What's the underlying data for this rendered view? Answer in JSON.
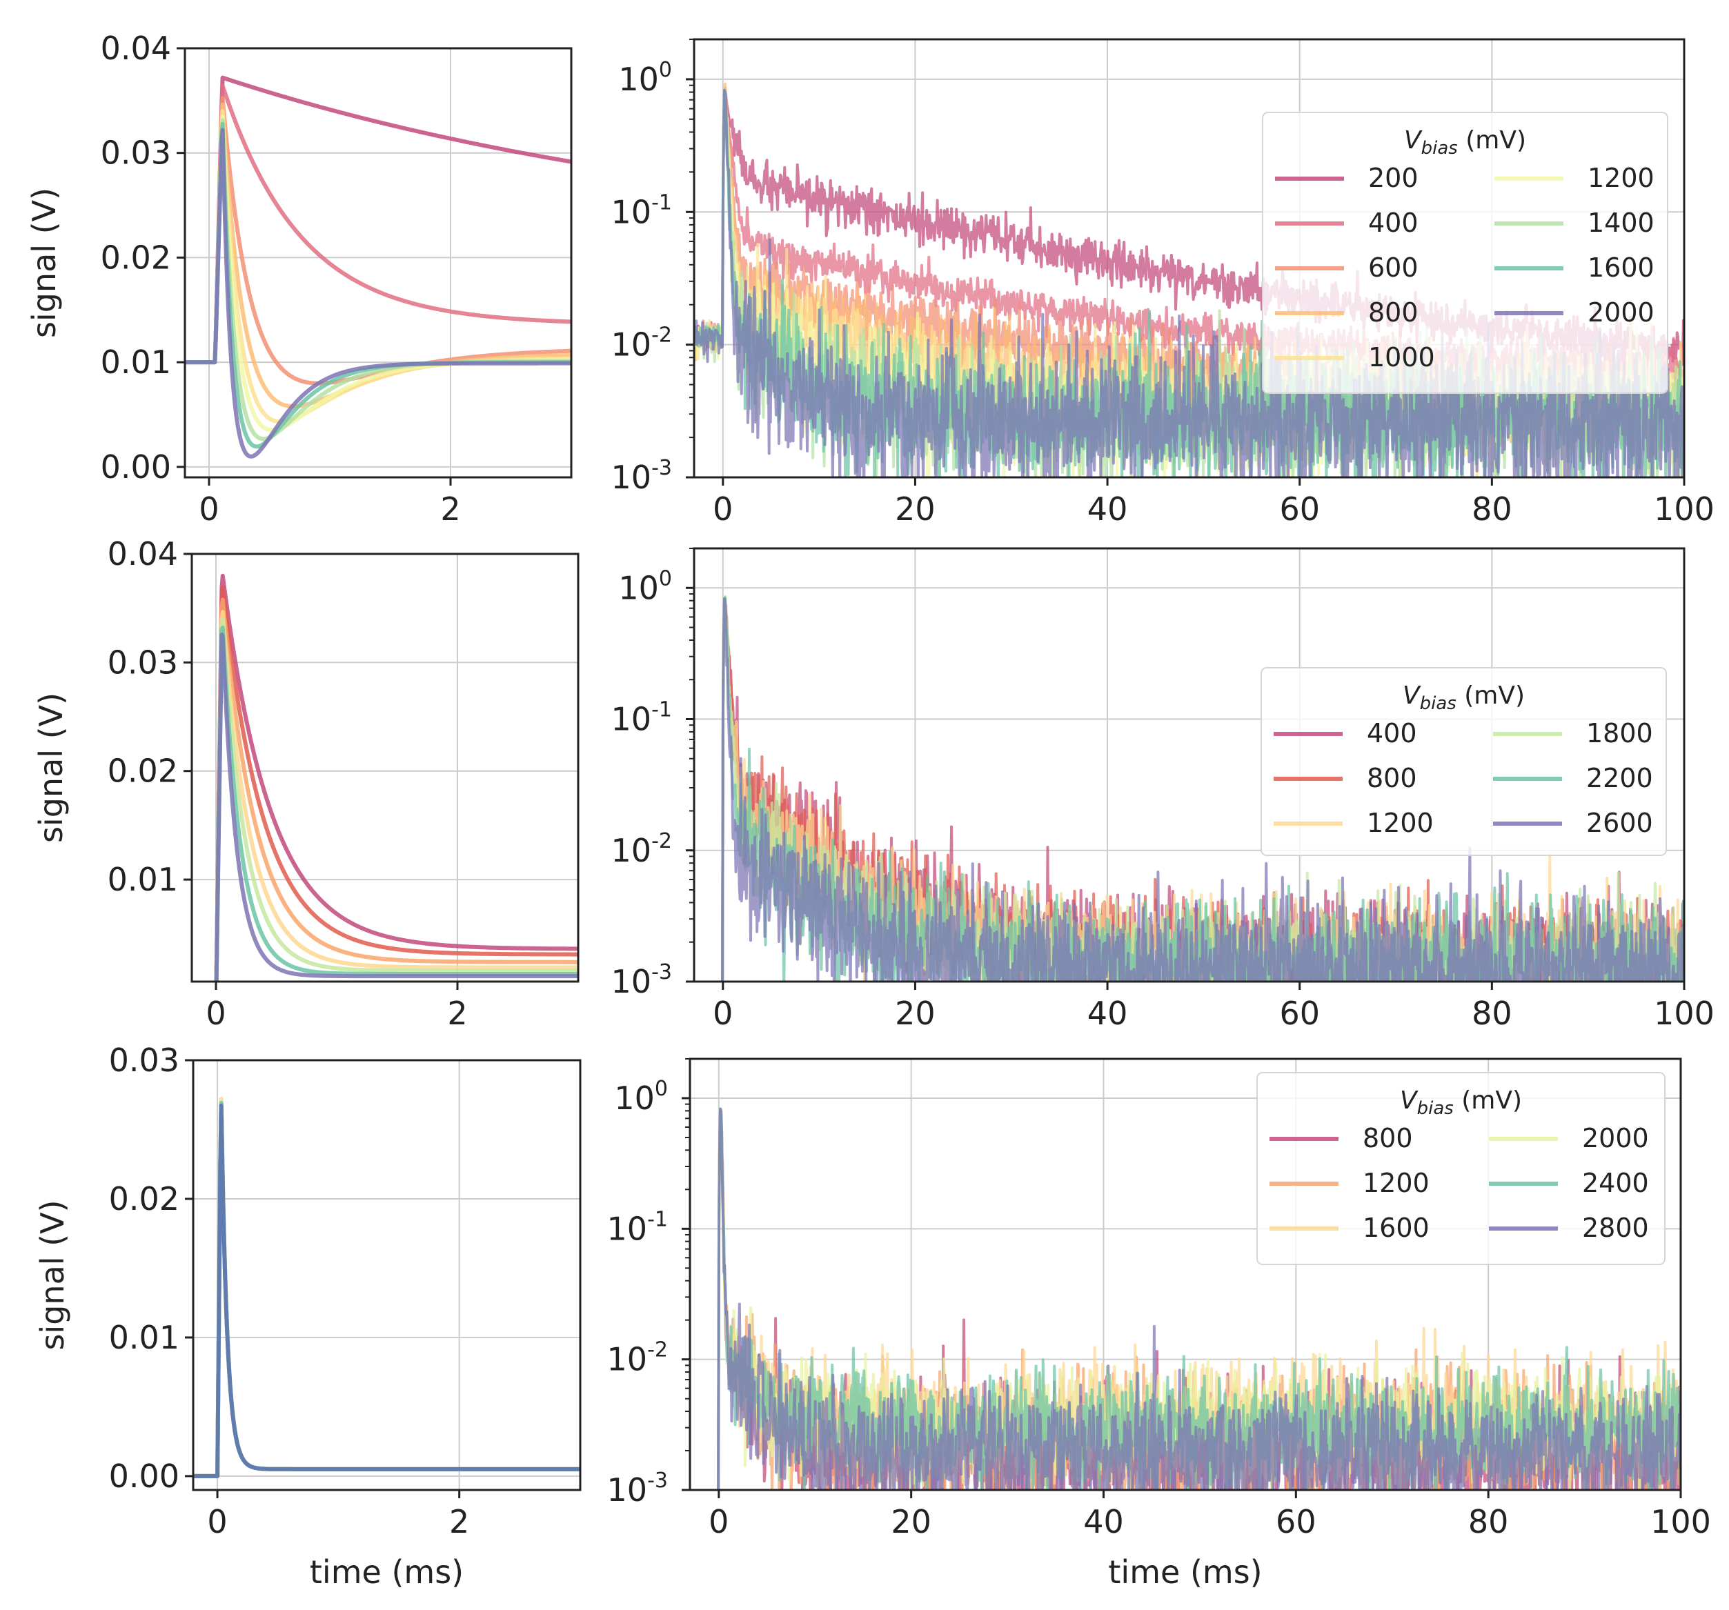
{
  "chart_data": [
    {
      "id": "row1-left",
      "type": "line",
      "scale": "linear",
      "title": "",
      "xlabel": "",
      "ylabel": "signal (V)",
      "xlim": [
        -0.2,
        3.0
      ],
      "ylim": [
        -0.001,
        0.04
      ],
      "xticks": [
        {
          "v": 0,
          "label": "0"
        },
        {
          "v": 2,
          "label": "2"
        }
      ],
      "yticks": [
        {
          "v": 0.0,
          "label": "0.00"
        },
        {
          "v": 0.01,
          "label": "0.01"
        },
        {
          "v": 0.02,
          "label": "0.02"
        },
        {
          "v": 0.03,
          "label": "0.03"
        },
        {
          "v": 0.04,
          "label": "0.04"
        }
      ],
      "grid": true,
      "series": [
        {
          "name": "200",
          "color": "#c2497a",
          "model": {
            "base": 0.01,
            "peak": 0.0372,
            "t0": 0.05,
            "rise": 0.06,
            "tau": 4.4,
            "final": 0.0205
          }
        },
        {
          "name": "400",
          "color": "#e06e83",
          "model": {
            "base": 0.01,
            "peak": 0.0365,
            "t0": 0.05,
            "rise": 0.06,
            "tau": 0.65,
            "final": 0.0136
          }
        },
        {
          "name": "600",
          "color": "#f38f74",
          "model": {
            "base": 0.01,
            "peak": 0.0355,
            "t0": 0.05,
            "rise": 0.06,
            "tau": 0.22,
            "final": 0.0113,
            "under": 0.0045,
            "utau": 0.5
          }
        },
        {
          "name": "800",
          "color": "#fbbd74",
          "model": {
            "base": 0.01,
            "peak": 0.035,
            "t0": 0.05,
            "rise": 0.06,
            "tau": 0.16,
            "final": 0.0108,
            "under": 0.006,
            "utau": 0.42
          }
        },
        {
          "name": "1000",
          "color": "#fde291",
          "model": {
            "base": 0.01,
            "peak": 0.0345,
            "t0": 0.05,
            "rise": 0.06,
            "tau": 0.13,
            "final": 0.0104,
            "under": 0.007,
            "utau": 0.36
          }
        },
        {
          "name": "1200",
          "color": "#f1f7a4",
          "model": {
            "base": 0.01,
            "peak": 0.034,
            "t0": 0.05,
            "rise": 0.06,
            "tau": 0.11,
            "final": 0.0102,
            "under": 0.0075,
            "utau": 0.32
          }
        },
        {
          "name": "1400",
          "color": "#b3e0a5",
          "model": {
            "base": 0.01,
            "peak": 0.0338,
            "t0": 0.05,
            "rise": 0.06,
            "tau": 0.09,
            "final": 0.0101,
            "under": 0.0082,
            "utau": 0.27
          }
        },
        {
          "name": "1600",
          "color": "#6bc4a6",
          "model": {
            "base": 0.01,
            "peak": 0.0336,
            "t0": 0.05,
            "rise": 0.06,
            "tau": 0.075,
            "final": 0.01,
            "under": 0.0088,
            "utau": 0.23
          }
        },
        {
          "name": "2000",
          "color": "#7b74b4",
          "model": {
            "base": 0.01,
            "peak": 0.0332,
            "t0": 0.05,
            "rise": 0.06,
            "tau": 0.06,
            "final": 0.0099,
            "under": 0.0095,
            "utau": 0.2
          }
        }
      ]
    },
    {
      "id": "row1-right",
      "type": "line",
      "scale": "log",
      "title": "",
      "xlabel": "",
      "ylabel": "",
      "xlim": [
        -3,
        100
      ],
      "ylim": [
        0.001,
        2
      ],
      "xticks": [
        {
          "v": 0,
          "label": "0"
        },
        {
          "v": 20,
          "label": "20"
        },
        {
          "v": 40,
          "label": "40"
        },
        {
          "v": 60,
          "label": "60"
        },
        {
          "v": 80,
          "label": "80"
        },
        {
          "v": 100,
          "label": "100"
        }
      ],
      "yticks": [
        {
          "v": 0.001,
          "exp": "-3"
        },
        {
          "v": 0.01,
          "exp": "-2"
        },
        {
          "v": 0.1,
          "exp": "-1"
        },
        {
          "v": 1,
          "exp": "0"
        }
      ],
      "grid": true,
      "legend": {
        "title_main": "V",
        "title_sub": "bias",
        "title_unit": " (mV)",
        "ncol": 2,
        "placement": "upper right"
      },
      "series": [
        {
          "name": "200",
          "color": "#c2497a",
          "model": {
            "pre": 0.0115,
            "fast": 0.55,
            "ftau": 0.9,
            "slow": 0.17,
            "stau": 26,
            "floor": 0.0055,
            "noise": 0.18
          }
        },
        {
          "name": "400",
          "color": "#e06e83",
          "model": {
            "pre": 0.0115,
            "fast": 0.9,
            "ftau": 0.5,
            "slow": 0.055,
            "stau": 22,
            "floor": 0.0065,
            "noise": 0.15
          }
        },
        {
          "name": "600",
          "color": "#f38f74",
          "model": {
            "pre": 0.0115,
            "fast": 0.9,
            "ftau": 0.4,
            "slow": 0.03,
            "stau": 18,
            "floor": 0.005,
            "noise": 0.25
          }
        },
        {
          "name": "800",
          "color": "#fbbd74",
          "model": {
            "pre": 0.0115,
            "fast": 0.9,
            "ftau": 0.35,
            "slow": 0.022,
            "stau": 14,
            "floor": 0.004,
            "noise": 0.35
          }
        },
        {
          "name": "1000",
          "color": "#fde291",
          "model": {
            "pre": 0.0115,
            "fast": 0.9,
            "ftau": 0.3,
            "slow": 0.016,
            "stau": 11,
            "floor": 0.0035,
            "noise": 0.45
          }
        },
        {
          "name": "1200",
          "color": "#f1f7a4",
          "model": {
            "pre": 0.0115,
            "fast": 0.9,
            "ftau": 0.28,
            "slow": 0.012,
            "stau": 9,
            "floor": 0.003,
            "noise": 0.5
          }
        },
        {
          "name": "1400",
          "color": "#b3e0a5",
          "model": {
            "pre": 0.0115,
            "fast": 0.9,
            "ftau": 0.25,
            "slow": 0.01,
            "stau": 7,
            "floor": 0.0028,
            "noise": 0.55
          }
        },
        {
          "name": "1600",
          "color": "#6bc4a6",
          "model": {
            "pre": 0.0115,
            "fast": 0.9,
            "ftau": 0.22,
            "slow": 0.0095,
            "stau": 6,
            "floor": 0.0027,
            "noise": 0.6
          }
        },
        {
          "name": "2000",
          "color": "#7b74b4",
          "model": {
            "pre": 0.0115,
            "fast": 0.9,
            "ftau": 0.2,
            "slow": 0.009,
            "stau": 5,
            "floor": 0.0026,
            "noise": 0.65
          }
        }
      ]
    },
    {
      "id": "row2-left",
      "type": "line",
      "scale": "linear",
      "title": "",
      "xlabel": "",
      "ylabel": "signal (V)",
      "xlim": [
        -0.2,
        3.0
      ],
      "ylim": [
        0.0006,
        0.04
      ],
      "xticks": [
        {
          "v": 0,
          "label": "0"
        },
        {
          "v": 2,
          "label": "2"
        }
      ],
      "yticks": [
        {
          "v": 0.01,
          "label": "0.01"
        },
        {
          "v": 0.02,
          "label": "0.02"
        },
        {
          "v": 0.03,
          "label": "0.03"
        },
        {
          "v": 0.04,
          "label": "0.04"
        }
      ],
      "grid": true,
      "series": [
        {
          "name": "400",
          "color": "#c2497a",
          "model": {
            "base": -0.002,
            "peak": 0.0385,
            "t0": 0.0,
            "rise": 0.05,
            "tau": 0.4,
            "final": 0.0036
          }
        },
        {
          "name": "800",
          "color": "#e05a4e",
          "model": {
            "base": -0.002,
            "peak": 0.0375,
            "t0": 0.0,
            "rise": 0.05,
            "tau": 0.34,
            "final": 0.0031
          }
        },
        {
          "name": "1200",
          "color": "#f8a46a",
          "model": {
            "base": -0.002,
            "peak": 0.0365,
            "t0": 0.0,
            "rise": 0.05,
            "tau": 0.28,
            "final": 0.0024
          }
        },
        {
          "name": "1600",
          "color": "#fed791",
          "model": {
            "base": -0.002,
            "peak": 0.0355,
            "t0": 0.0,
            "rise": 0.05,
            "tau": 0.23,
            "final": 0.0019
          }
        },
        {
          "name": "1800",
          "color": "#c5e7a0",
          "model": {
            "base": -0.002,
            "peak": 0.035,
            "t0": 0.0,
            "rise": 0.05,
            "tau": 0.19,
            "final": 0.0016
          }
        },
        {
          "name": "2200",
          "color": "#6bc4a6",
          "model": {
            "base": -0.002,
            "peak": 0.0345,
            "t0": 0.0,
            "rise": 0.05,
            "tau": 0.15,
            "final": 0.0013
          }
        },
        {
          "name": "2600",
          "color": "#7b74b4",
          "model": {
            "base": -0.002,
            "peak": 0.034,
            "t0": 0.0,
            "rise": 0.05,
            "tau": 0.12,
            "final": 0.0011
          }
        }
      ]
    },
    {
      "id": "row2-right",
      "type": "line",
      "scale": "log",
      "title": "",
      "xlabel": "",
      "ylabel": "",
      "xlim": [
        -3,
        100
      ],
      "ylim": [
        0.001,
        2
      ],
      "xticks": [
        {
          "v": 0,
          "label": "0"
        },
        {
          "v": 20,
          "label": "20"
        },
        {
          "v": 40,
          "label": "40"
        },
        {
          "v": 60,
          "label": "60"
        },
        {
          "v": 80,
          "label": "80"
        },
        {
          "v": 100,
          "label": "100"
        }
      ],
      "yticks": [
        {
          "v": 0.001,
          "exp": "-3"
        },
        {
          "v": 0.01,
          "exp": "-2"
        },
        {
          "v": 0.1,
          "exp": "-1"
        },
        {
          "v": 1,
          "exp": "0"
        }
      ],
      "grid": true,
      "legend": {
        "title_main": "V",
        "title_sub": "bias",
        "title_unit": " (mV)",
        "ncol": 2,
        "placement": "center right"
      },
      "series": [
        {
          "name": "400",
          "color": "#c2497a",
          "model": {
            "pre": 0.0,
            "fast": 0.9,
            "ftau": 0.35,
            "slow": 0.028,
            "stau": 8.5,
            "floor": 0.0016,
            "noise": 0.45
          }
        },
        {
          "name": "800",
          "color": "#e05a4e",
          "model": {
            "pre": 0.0,
            "fast": 0.9,
            "ftau": 0.33,
            "slow": 0.026,
            "stau": 8,
            "floor": 0.0015,
            "noise": 0.45
          }
        },
        {
          "name": "1200",
          "color": "#fed791",
          "model": {
            "pre": 0.0,
            "fast": 0.9,
            "ftau": 0.3,
            "slow": 0.022,
            "stau": 7.5,
            "floor": 0.0015,
            "noise": 0.5
          }
        },
        {
          "name": "1800",
          "color": "#c5e7a0",
          "model": {
            "pre": 0.0,
            "fast": 0.9,
            "ftau": 0.27,
            "slow": 0.017,
            "stau": 7,
            "floor": 0.0014,
            "noise": 0.5
          }
        },
        {
          "name": "2200",
          "color": "#6bc4a6",
          "model": {
            "pre": 0.0,
            "fast": 0.9,
            "ftau": 0.24,
            "slow": 0.012,
            "stau": 6.5,
            "floor": 0.0013,
            "noise": 0.55
          }
        },
        {
          "name": "2600",
          "color": "#7b74b4",
          "model": {
            "pre": 0.0,
            "fast": 0.9,
            "ftau": 0.2,
            "slow": 0.0105,
            "stau": 5.5,
            "floor": 0.0013,
            "noise": 0.6
          }
        }
      ]
    },
    {
      "id": "row3-left",
      "type": "line",
      "scale": "linear",
      "title": "",
      "xlabel": "time (ms)",
      "ylabel": "signal (V)",
      "xlim": [
        -0.2,
        3.0
      ],
      "ylim": [
        -0.001,
        0.03
      ],
      "xticks": [
        {
          "v": 0,
          "label": "0"
        },
        {
          "v": 2,
          "label": "2"
        }
      ],
      "yticks": [
        {
          "v": 0.0,
          "label": "0.00"
        },
        {
          "v": 0.01,
          "label": "0.01"
        },
        {
          "v": 0.02,
          "label": "0.02"
        },
        {
          "v": 0.03,
          "label": "0.03"
        }
      ],
      "grid": true,
      "series": [
        {
          "name": "800",
          "color": "#c2497a",
          "model": {
            "base": 0.0,
            "peak": 0.028,
            "t0": 0.0,
            "rise": 0.03,
            "tau": 0.05,
            "final": 0.0005
          }
        },
        {
          "name": "1200",
          "color": "#f8a46a",
          "model": {
            "base": 0.0,
            "peak": 0.028,
            "t0": 0.0,
            "rise": 0.03,
            "tau": 0.05,
            "final": 0.0005
          }
        },
        {
          "name": "1600",
          "color": "#fed791",
          "model": {
            "base": 0.0,
            "peak": 0.0283,
            "t0": 0.0,
            "rise": 0.03,
            "tau": 0.05,
            "final": 0.0005
          }
        },
        {
          "name": "2000",
          "color": "#e6f39c",
          "model": {
            "base": 0.0,
            "peak": 0.028,
            "t0": 0.0,
            "rise": 0.03,
            "tau": 0.05,
            "final": 0.0005
          }
        },
        {
          "name": "2400",
          "color": "#6bc4a6",
          "model": {
            "base": 0.0,
            "peak": 0.028,
            "t0": 0.0,
            "rise": 0.03,
            "tau": 0.05,
            "final": 0.0005
          }
        },
        {
          "name": "2800",
          "color": "#5a6eb0",
          "model": {
            "base": 0.0,
            "peak": 0.0278,
            "t0": 0.0,
            "rise": 0.03,
            "tau": 0.05,
            "final": 0.0005
          }
        }
      ]
    },
    {
      "id": "row3-right",
      "type": "line",
      "scale": "log",
      "title": "",
      "xlabel": "time (ms)",
      "ylabel": "",
      "xlim": [
        -3,
        100
      ],
      "ylim": [
        0.001,
        2
      ],
      "xticks": [
        {
          "v": 0,
          "label": "0"
        },
        {
          "v": 20,
          "label": "20"
        },
        {
          "v": 40,
          "label": "40"
        },
        {
          "v": 60,
          "label": "60"
        },
        {
          "v": 80,
          "label": "80"
        },
        {
          "v": 100,
          "label": "100"
        }
      ],
      "yticks": [
        {
          "v": 0.001,
          "exp": "-3"
        },
        {
          "v": 0.01,
          "exp": "-2"
        },
        {
          "v": 0.1,
          "exp": "-1"
        },
        {
          "v": 1,
          "exp": "0"
        }
      ],
      "grid": true,
      "legend": {
        "title_main": "V",
        "title_sub": "bias",
        "title_unit": " (mV)",
        "ncol": 2,
        "placement": "upper right"
      },
      "series": [
        {
          "name": "800",
          "color": "#c2497a",
          "model": {
            "pre": 0.0,
            "fast": 0.99,
            "ftau": 0.12,
            "slow": 0.009,
            "stau": 3.5,
            "floor": 0.0018,
            "noise": 0.6
          }
        },
        {
          "name": "1200",
          "color": "#f8a46a",
          "model": {
            "pre": 0.0,
            "fast": 0.99,
            "ftau": 0.12,
            "slow": 0.009,
            "stau": 3.5,
            "floor": 0.0022,
            "noise": 0.6
          }
        },
        {
          "name": "1600",
          "color": "#fed791",
          "model": {
            "pre": 0.0,
            "fast": 0.99,
            "ftau": 0.12,
            "slow": 0.009,
            "stau": 3.5,
            "floor": 0.0035,
            "noise": 0.5
          }
        },
        {
          "name": "2000",
          "color": "#e6f39c",
          "model": {
            "pre": 0.0,
            "fast": 0.99,
            "ftau": 0.12,
            "slow": 0.009,
            "stau": 3.5,
            "floor": 0.003,
            "noise": 0.5
          }
        },
        {
          "name": "2400",
          "color": "#6bc4a6",
          "model": {
            "pre": 0.0,
            "fast": 0.99,
            "ftau": 0.12,
            "slow": 0.009,
            "stau": 3.5,
            "floor": 0.0028,
            "noise": 0.5
          }
        },
        {
          "name": "2800",
          "color": "#7b74b4",
          "model": {
            "pre": 0.0,
            "fast": 0.99,
            "ftau": 0.12,
            "slow": 0.009,
            "stau": 3.5,
            "floor": 0.0018,
            "noise": 0.6
          }
        }
      ]
    }
  ]
}
